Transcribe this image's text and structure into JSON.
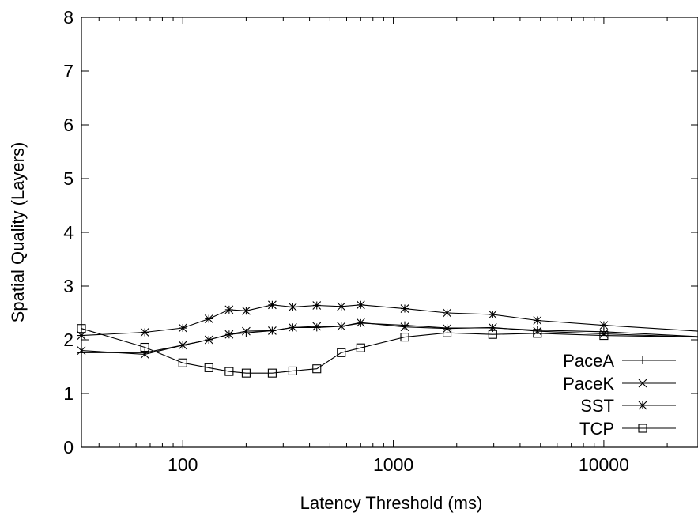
{
  "chart_data": {
    "type": "line",
    "xlabel": "Latency Threshold (ms)",
    "ylabel": "Spatial Quality (Layers)",
    "x_scale": "log",
    "xlim": [
      33,
      28000
    ],
    "ylim": [
      0,
      8
    ],
    "x_ticks": [
      {
        "value": 100,
        "label": "100"
      },
      {
        "value": 1000,
        "label": "1000"
      },
      {
        "value": 10000,
        "label": "10000"
      }
    ],
    "y_ticks": [
      {
        "value": 0,
        "label": "0"
      },
      {
        "value": 1,
        "label": "1"
      },
      {
        "value": 2,
        "label": "2"
      },
      {
        "value": 3,
        "label": "3"
      },
      {
        "value": 4,
        "label": "4"
      },
      {
        "value": 5,
        "label": "5"
      },
      {
        "value": 6,
        "label": "6"
      },
      {
        "value": 7,
        "label": "7"
      },
      {
        "value": 8,
        "label": "8"
      }
    ],
    "grid": false,
    "legend_position": "bottom-right",
    "series": [
      {
        "name": "PaceA",
        "marker": "plus",
        "x": [
          33,
          66,
          100,
          133,
          166,
          200,
          266,
          333,
          433,
          566,
          700,
          1133,
          1800,
          2966,
          4833,
          10000,
          28000
        ],
        "y": [
          1.76,
          1.76,
          1.9,
          2.0,
          2.1,
          2.13,
          2.17,
          2.23,
          2.23,
          2.25,
          2.31,
          2.27,
          2.22,
          2.22,
          2.18,
          2.15,
          2.06
        ]
      },
      {
        "name": "PaceK",
        "marker": "x",
        "x": [
          33,
          66,
          100,
          133,
          166,
          200,
          266,
          333,
          433,
          566,
          700,
          1133,
          1800,
          2966,
          4833,
          10000,
          28000
        ],
        "y": [
          1.8,
          1.73,
          1.9,
          2.0,
          2.1,
          2.16,
          2.17,
          2.23,
          2.25,
          2.25,
          2.32,
          2.24,
          2.21,
          2.23,
          2.16,
          2.11,
          2.05
        ]
      },
      {
        "name": "SST",
        "marker": "asterisk",
        "x": [
          33,
          66,
          100,
          133,
          166,
          200,
          266,
          333,
          433,
          566,
          700,
          1133,
          1800,
          2966,
          4833,
          10000,
          28000
        ],
        "y": [
          2.08,
          2.14,
          2.22,
          2.39,
          2.56,
          2.54,
          2.65,
          2.61,
          2.64,
          2.62,
          2.65,
          2.58,
          2.5,
          2.47,
          2.36,
          2.27,
          2.16
        ]
      },
      {
        "name": "TCP",
        "marker": "square",
        "x": [
          33,
          66,
          100,
          133,
          166,
          200,
          266,
          333,
          433,
          566,
          700,
          1133,
          1800,
          2966,
          4833,
          10000,
          28000
        ],
        "y": [
          2.21,
          1.86,
          1.57,
          1.48,
          1.41,
          1.38,
          1.38,
          1.42,
          1.46,
          1.76,
          1.85,
          2.05,
          2.13,
          2.1,
          2.12,
          2.08,
          2.05
        ]
      }
    ]
  }
}
